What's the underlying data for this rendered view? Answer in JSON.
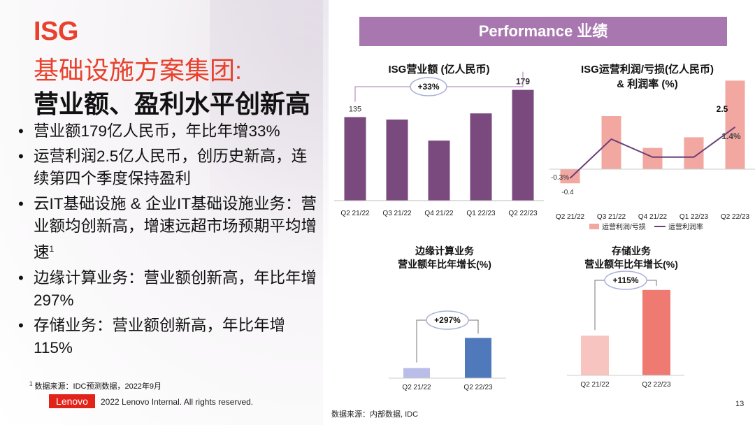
{
  "left": {
    "title_line1": "ISG",
    "title_line2": "基础设施方案集团:",
    "title_line3": "营业额、盈利水平创新高",
    "bullets": [
      {
        "text": "营业额179亿人民币，年比年增33%",
        "sup": ""
      },
      {
        "text": "运营利润2.5亿人民币，创历史新高，连续第四个季度保持盈利",
        "sup": ""
      },
      {
        "text": "云IT基础设施 & 企业IT基础设施业务：营业额均创新高，增速远超市场预期平均增速",
        "sup": "1"
      },
      {
        "text": "边缘计算业务：营业额创新高，年比年增297%",
        "sup": ""
      },
      {
        "text": "存储业务：营业额创新高，年比年增115%",
        "sup": ""
      }
    ],
    "footnote_marker": "1",
    "footnote": "数据来源：IDC预测数据，2022年9月",
    "logo": "Lenovo",
    "copyright": "2022 Lenovo Internal. All rights reserved."
  },
  "banner": "Performance 业绩",
  "source": "数据来源：内部数据, IDC",
  "page_number": "13",
  "colors": {
    "brand_red": "#e2231a",
    "title_red": "#e8412c",
    "banner_purple": "#a977b0",
    "revenue_bar": "#7a4a7f",
    "profit_bar": "#f2a7a1",
    "margin_line": "#6a3e78",
    "edge_prev": "#b9bde8",
    "edge_curr": "#4f79ba",
    "storage_prev": "#f7c4bf",
    "storage_curr": "#ee7a72"
  },
  "chart_data": [
    {
      "type": "bar",
      "title": "ISG营业额 (亿人民币)",
      "categories": [
        "Q2 21/22",
        "Q3 21/22",
        "Q4 21/22",
        "Q1 22/23",
        "Q2 22/23"
      ],
      "values": [
        135,
        131,
        97,
        141,
        179
      ],
      "data_labels": [
        "135",
        "",
        "",
        "",
        "179"
      ],
      "callout": "+33%",
      "ylim": [
        0,
        200
      ]
    },
    {
      "type": "bar",
      "title_line1": "ISG运营利润/亏损(亿人民币)",
      "title_line2": "& 利润率 (%)",
      "categories": [
        "Q2 21/22",
        "Q3 21/22",
        "Q4 21/22",
        "Q1 22/23",
        "Q2 22/23"
      ],
      "series": [
        {
          "name": "运营利润/亏损",
          "type": "bar",
          "values": [
            -0.4,
            1.5,
            0.6,
            0.9,
            2.5
          ],
          "labels": [
            "-0.4",
            "",
            "",
            "",
            "2.5"
          ]
        },
        {
          "name": "运营利润率",
          "type": "line",
          "values": [
            -0.3,
            1.0,
            0.4,
            0.4,
            1.4
          ],
          "labels": [
            "-0.3%",
            "",
            "",
            "",
            "1.4%"
          ]
        }
      ],
      "ylim": [
        -0.6,
        2.8
      ]
    },
    {
      "type": "bar",
      "title_line1": "边缘计算业务",
      "title_line2": "营业额年比年增长(%)",
      "categories": [
        "Q2 21/22",
        "Q2 22/23"
      ],
      "values": [
        1,
        3.97
      ],
      "callout": "+297%",
      "ylim": [
        0,
        4
      ]
    },
    {
      "type": "bar",
      "title_line1": "存储业务",
      "title_line2": "营业额年比年增长(%)",
      "categories": [
        "Q2 21/22",
        "Q2 22/23"
      ],
      "values": [
        1,
        2.15
      ],
      "callout": "+115%",
      "ylim": [
        0,
        2.2
      ]
    }
  ]
}
